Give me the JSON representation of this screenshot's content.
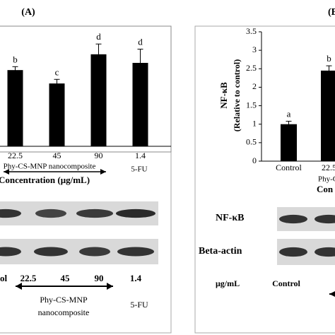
{
  "chart_data": [
    {
      "type": "bar",
      "panel": "(A)",
      "categories": [
        "22.5",
        "45",
        "90",
        "1.4"
      ],
      "values": [
        2.22,
        1.83,
        2.68,
        2.43
      ],
      "errors": [
        0.1,
        0.12,
        0.3,
        0.4
      ],
      "significance": [
        "b",
        "c",
        "d",
        "d"
      ],
      "color": "#000000",
      "ylim": [
        0,
        3.5
      ],
      "group_label": "Phy-CS-MNP nanocomposite",
      "control_label": "5-FU",
      "xlabel": "Concentration (μg/mL)"
    },
    {
      "type": "bar",
      "panel": "(B",
      "ylabel": [
        "NF-κB",
        "(Relative to control)"
      ],
      "categories": [
        "Control",
        "22.5"
      ],
      "values": [
        1,
        2.45
      ],
      "errors": [
        0.08,
        0.13
      ],
      "significance": [
        "a",
        "b"
      ],
      "color": "#000000",
      "ylim": [
        0,
        3.5
      ],
      "yticks": [
        0,
        0.5,
        1,
        1.5,
        2,
        2.5,
        3,
        3.5
      ],
      "group_label": "Phy-C",
      "xlabel": "Con"
    }
  ],
  "blots": {
    "left": {
      "lanes": [
        "ol",
        "22.5",
        "45",
        "90",
        "1.4"
      ],
      "group_label": [
        "Phy-CS-MNP",
        "nanocomposite"
      ],
      "control_label": "5-FU"
    },
    "right": {
      "rows": [
        "NF-κB",
        "Beta-actin"
      ],
      "unit": "μg/mL",
      "lanes": [
        "Control"
      ]
    }
  }
}
